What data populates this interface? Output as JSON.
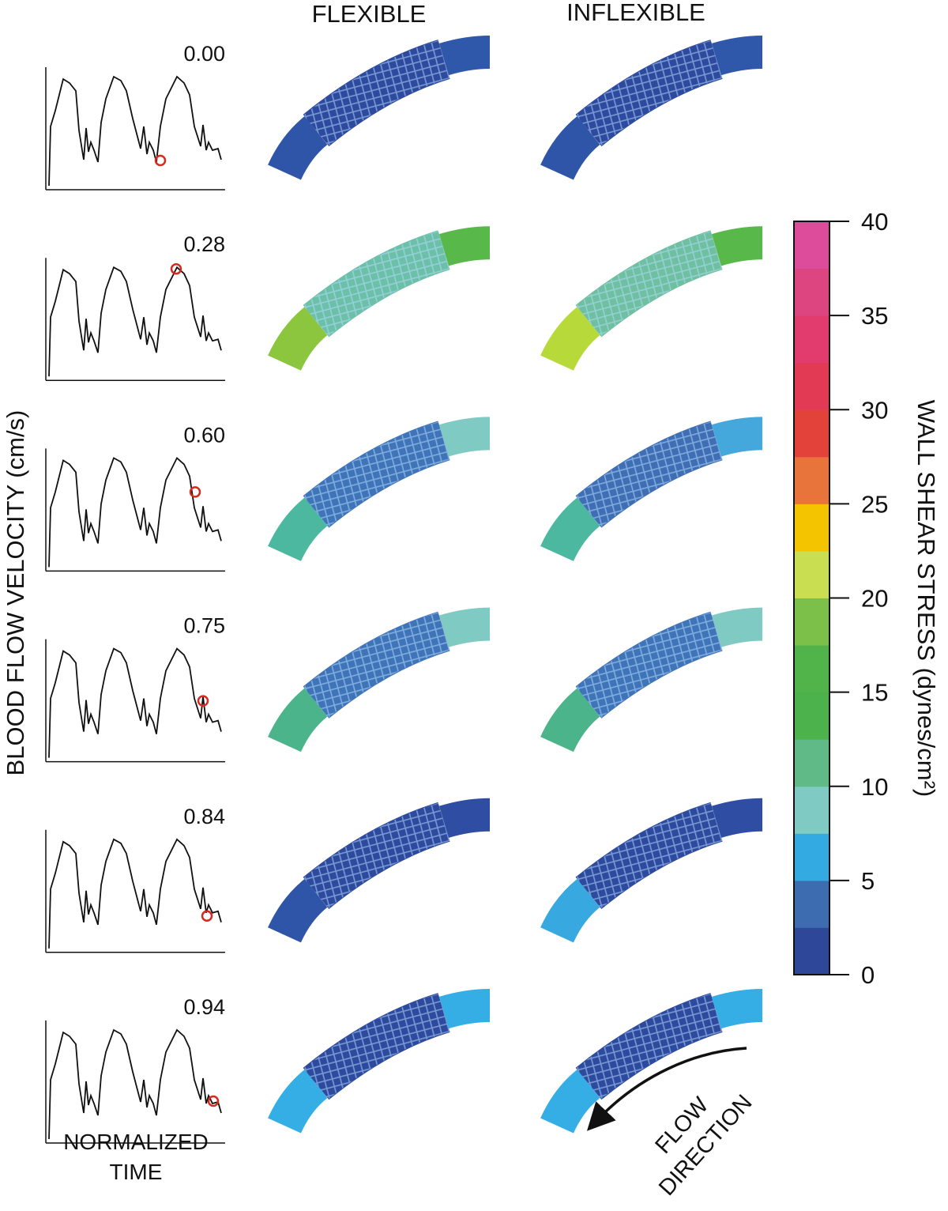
{
  "figure": {
    "columns": [
      "FLEXIBLE",
      "INFLEXIBLE"
    ],
    "y_axis_label": "BLOOD FLOW VELOCITY (cm/s)",
    "x_axis_label": [
      "NORMALIZED",
      "TIME"
    ],
    "times": [
      "0.00",
      "0.28",
      "0.60",
      "0.75",
      "0.84",
      "0.94"
    ],
    "flow_label": [
      "FLOW",
      "DIRECTION"
    ],
    "colorbar": {
      "label": "WALL SHEAR STRESS (dynes/cm²)",
      "lim": [
        0,
        40
      ],
      "ticks": [
        0,
        5,
        10,
        15,
        20,
        25,
        30,
        35,
        40
      ],
      "colors": [
        "#2e4799",
        "#3d6cb0",
        "#33aae2",
        "#7fcbc4",
        "#5fba88",
        "#4cb24c",
        "#50b44a",
        "#7cc049",
        "#c9de50",
        "#f4c400",
        "#e8743c",
        "#e2423a",
        "#e23a55",
        "#e23b6d",
        "#dd4580",
        "#dd4b9b"
      ]
    }
  }
}
